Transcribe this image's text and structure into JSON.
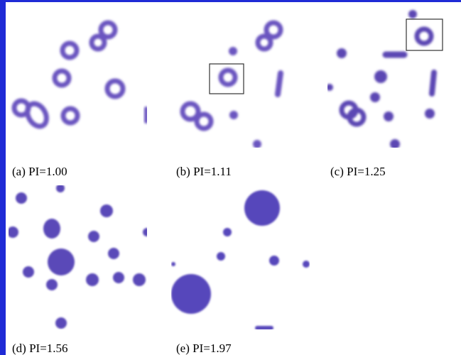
{
  "figure": {
    "accent_color": "#1f2bd6",
    "blob_color": "#5b47b3",
    "panels": [
      {
        "label": "(a) PI=1.00"
      },
      {
        "label": "(b) PI=1.11"
      },
      {
        "label": "(c) PI=1.25"
      },
      {
        "label": "(d) PI=1.56"
      },
      {
        "label": "(e) PI=1.97"
      }
    ]
  }
}
